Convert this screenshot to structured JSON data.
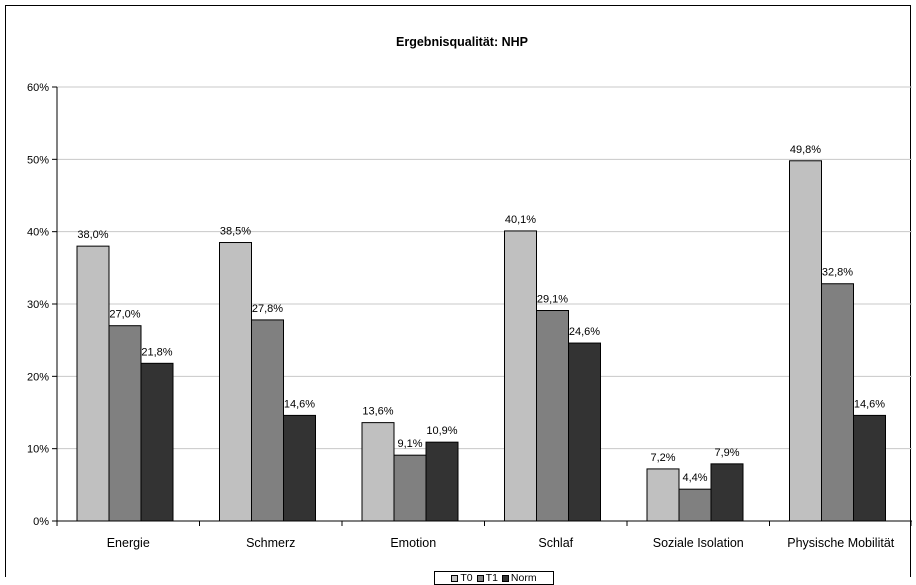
{
  "chart_data": {
    "type": "bar",
    "title": "Ergebnisqualität: NHP",
    "xlabel": "",
    "ylabel": "",
    "ylim": [
      0,
      60
    ],
    "yticks": [
      "0%",
      "10%",
      "20%",
      "30%",
      "40%",
      "50%",
      "60%"
    ],
    "grid": true,
    "legend_position": "bottom",
    "categories": [
      "Energie",
      "Schmerz",
      "Emotion",
      "Schlaf",
      "Soziale Isolation",
      "Physische Mobilität"
    ],
    "series": [
      {
        "name": "T0",
        "color": "#c0c0c0",
        "values": [
          38.0,
          38.5,
          13.6,
          40.1,
          7.2,
          49.8
        ],
        "labels": [
          "38,0%",
          "38,5%",
          "13,6%",
          "40,1%",
          "7,2%",
          "49,8%"
        ]
      },
      {
        "name": "T1",
        "color": "#808080",
        "values": [
          27.0,
          27.8,
          9.1,
          29.1,
          4.4,
          32.8
        ],
        "labels": [
          "27,0%",
          "27,8%",
          "9,1%",
          "29,1%",
          "4,4%",
          "32,8%"
        ]
      },
      {
        "name": "Norm",
        "color": "#333333",
        "values": [
          21.8,
          14.6,
          10.9,
          24.6,
          7.9,
          14.6
        ],
        "labels": [
          "21,8%",
          "14,6%",
          "10,9%",
          "24,6%",
          "7,9%",
          "14,6%"
        ]
      }
    ]
  }
}
